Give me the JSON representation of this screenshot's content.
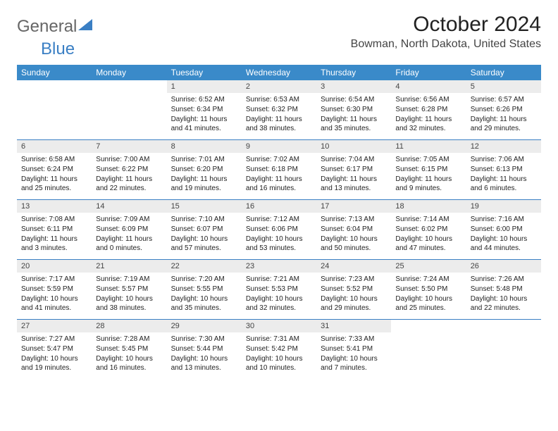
{
  "logo": {
    "general": "General",
    "blue": "Blue"
  },
  "title": "October 2024",
  "location": "Bowman, North Dakota, United States",
  "colors": {
    "header_bg": "#3a8ac9",
    "header_text": "#ffffff",
    "daynum_bg": "#ececec",
    "rule": "#3a7fc4",
    "logo_blue": "#3a7fc4",
    "logo_gray": "#666666"
  },
  "dow": [
    "Sunday",
    "Monday",
    "Tuesday",
    "Wednesday",
    "Thursday",
    "Friday",
    "Saturday"
  ],
  "weeks": [
    [
      null,
      null,
      {
        "n": "1",
        "sr": "6:52 AM",
        "ss": "6:34 PM",
        "dl": "11 hours and 41 minutes."
      },
      {
        "n": "2",
        "sr": "6:53 AM",
        "ss": "6:32 PM",
        "dl": "11 hours and 38 minutes."
      },
      {
        "n": "3",
        "sr": "6:54 AM",
        "ss": "6:30 PM",
        "dl": "11 hours and 35 minutes."
      },
      {
        "n": "4",
        "sr": "6:56 AM",
        "ss": "6:28 PM",
        "dl": "11 hours and 32 minutes."
      },
      {
        "n": "5",
        "sr": "6:57 AM",
        "ss": "6:26 PM",
        "dl": "11 hours and 29 minutes."
      }
    ],
    [
      {
        "n": "6",
        "sr": "6:58 AM",
        "ss": "6:24 PM",
        "dl": "11 hours and 25 minutes."
      },
      {
        "n": "7",
        "sr": "7:00 AM",
        "ss": "6:22 PM",
        "dl": "11 hours and 22 minutes."
      },
      {
        "n": "8",
        "sr": "7:01 AM",
        "ss": "6:20 PM",
        "dl": "11 hours and 19 minutes."
      },
      {
        "n": "9",
        "sr": "7:02 AM",
        "ss": "6:18 PM",
        "dl": "11 hours and 16 minutes."
      },
      {
        "n": "10",
        "sr": "7:04 AM",
        "ss": "6:17 PM",
        "dl": "11 hours and 13 minutes."
      },
      {
        "n": "11",
        "sr": "7:05 AM",
        "ss": "6:15 PM",
        "dl": "11 hours and 9 minutes."
      },
      {
        "n": "12",
        "sr": "7:06 AM",
        "ss": "6:13 PM",
        "dl": "11 hours and 6 minutes."
      }
    ],
    [
      {
        "n": "13",
        "sr": "7:08 AM",
        "ss": "6:11 PM",
        "dl": "11 hours and 3 minutes."
      },
      {
        "n": "14",
        "sr": "7:09 AM",
        "ss": "6:09 PM",
        "dl": "11 hours and 0 minutes."
      },
      {
        "n": "15",
        "sr": "7:10 AM",
        "ss": "6:07 PM",
        "dl": "10 hours and 57 minutes."
      },
      {
        "n": "16",
        "sr": "7:12 AM",
        "ss": "6:06 PM",
        "dl": "10 hours and 53 minutes."
      },
      {
        "n": "17",
        "sr": "7:13 AM",
        "ss": "6:04 PM",
        "dl": "10 hours and 50 minutes."
      },
      {
        "n": "18",
        "sr": "7:14 AM",
        "ss": "6:02 PM",
        "dl": "10 hours and 47 minutes."
      },
      {
        "n": "19",
        "sr": "7:16 AM",
        "ss": "6:00 PM",
        "dl": "10 hours and 44 minutes."
      }
    ],
    [
      {
        "n": "20",
        "sr": "7:17 AM",
        "ss": "5:59 PM",
        "dl": "10 hours and 41 minutes."
      },
      {
        "n": "21",
        "sr": "7:19 AM",
        "ss": "5:57 PM",
        "dl": "10 hours and 38 minutes."
      },
      {
        "n": "22",
        "sr": "7:20 AM",
        "ss": "5:55 PM",
        "dl": "10 hours and 35 minutes."
      },
      {
        "n": "23",
        "sr": "7:21 AM",
        "ss": "5:53 PM",
        "dl": "10 hours and 32 minutes."
      },
      {
        "n": "24",
        "sr": "7:23 AM",
        "ss": "5:52 PM",
        "dl": "10 hours and 29 minutes."
      },
      {
        "n": "25",
        "sr": "7:24 AM",
        "ss": "5:50 PM",
        "dl": "10 hours and 25 minutes."
      },
      {
        "n": "26",
        "sr": "7:26 AM",
        "ss": "5:48 PM",
        "dl": "10 hours and 22 minutes."
      }
    ],
    [
      {
        "n": "27",
        "sr": "7:27 AM",
        "ss": "5:47 PM",
        "dl": "10 hours and 19 minutes."
      },
      {
        "n": "28",
        "sr": "7:28 AM",
        "ss": "5:45 PM",
        "dl": "10 hours and 16 minutes."
      },
      {
        "n": "29",
        "sr": "7:30 AM",
        "ss": "5:44 PM",
        "dl": "10 hours and 13 minutes."
      },
      {
        "n": "30",
        "sr": "7:31 AM",
        "ss": "5:42 PM",
        "dl": "10 hours and 10 minutes."
      },
      {
        "n": "31",
        "sr": "7:33 AM",
        "ss": "5:41 PM",
        "dl": "10 hours and 7 minutes."
      },
      null,
      null
    ]
  ],
  "labels": {
    "sunrise": "Sunrise: ",
    "sunset": "Sunset: ",
    "daylight": "Daylight: "
  }
}
